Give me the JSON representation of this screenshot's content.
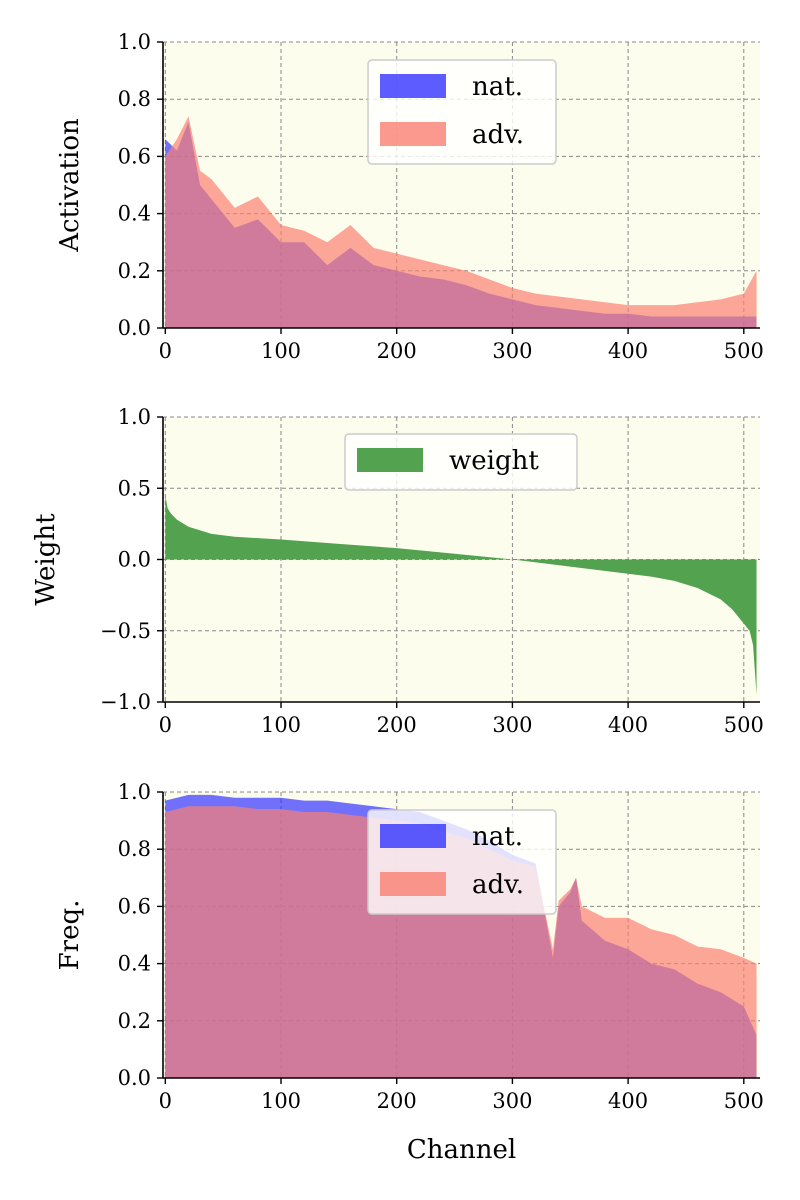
{
  "chart_data": [
    {
      "type": "area",
      "xlabel": "",
      "ylabel": "Activation",
      "xlim": [
        -2,
        514
      ],
      "ylim": [
        0,
        1.0
      ],
      "xticks": [
        "0",
        "100",
        "200",
        "300",
        "400",
        "500"
      ],
      "yticks": [
        "0.0",
        "0.2",
        "0.4",
        "0.6",
        "0.8",
        "1.0"
      ],
      "grid": true,
      "legend": "upper center",
      "series": [
        {
          "name": "nat.",
          "color": "#3333ff",
          "x": [
            0,
            10,
            20,
            30,
            40,
            60,
            80,
            100,
            120,
            140,
            160,
            180,
            200,
            220,
            240,
            260,
            280,
            300,
            320,
            340,
            360,
            380,
            400,
            420,
            440,
            460,
            480,
            500,
            511
          ],
          "values": [
            0.66,
            0.62,
            0.72,
            0.5,
            0.45,
            0.35,
            0.38,
            0.3,
            0.3,
            0.22,
            0.28,
            0.22,
            0.2,
            0.18,
            0.17,
            0.15,
            0.12,
            0.1,
            0.08,
            0.07,
            0.06,
            0.05,
            0.05,
            0.04,
            0.04,
            0.04,
            0.04,
            0.04,
            0.04
          ]
        },
        {
          "name": "adv.",
          "color": "#fa8072",
          "x": [
            0,
            10,
            20,
            30,
            40,
            60,
            80,
            100,
            120,
            140,
            160,
            180,
            200,
            220,
            240,
            260,
            280,
            300,
            320,
            340,
            360,
            380,
            400,
            420,
            440,
            460,
            480,
            500,
            511
          ],
          "values": [
            0.6,
            0.66,
            0.74,
            0.55,
            0.52,
            0.42,
            0.46,
            0.36,
            0.34,
            0.3,
            0.36,
            0.28,
            0.26,
            0.24,
            0.22,
            0.2,
            0.17,
            0.14,
            0.12,
            0.11,
            0.1,
            0.09,
            0.08,
            0.08,
            0.08,
            0.09,
            0.1,
            0.12,
            0.2
          ]
        }
      ]
    },
    {
      "type": "area",
      "xlabel": "",
      "ylabel": "Weight",
      "xlim": [
        -2,
        514
      ],
      "ylim": [
        -1.0,
        1.0
      ],
      "xticks": [
        "0",
        "100",
        "200",
        "300",
        "400",
        "500"
      ],
      "yticks": [
        "−1.0",
        "−0.5",
        "0.0",
        "0.5",
        "1.0"
      ],
      "grid": true,
      "legend": "upper center",
      "series": [
        {
          "name": "weight",
          "color": "#52a24f",
          "x": [
            0,
            2,
            5,
            10,
            20,
            40,
            60,
            80,
            100,
            150,
            200,
            250,
            300,
            310,
            350,
            400,
            420,
            440,
            460,
            480,
            490,
            500,
            505,
            508,
            511
          ],
          "values": [
            0.45,
            0.36,
            0.32,
            0.28,
            0.23,
            0.18,
            0.16,
            0.15,
            0.14,
            0.11,
            0.08,
            0.04,
            0.0,
            -0.01,
            -0.05,
            -0.1,
            -0.12,
            -0.15,
            -0.2,
            -0.28,
            -0.35,
            -0.45,
            -0.5,
            -0.6,
            -0.95
          ]
        }
      ]
    },
    {
      "type": "area",
      "xlabel": "Channel",
      "ylabel": "Freq.",
      "xlim": [
        -2,
        514
      ],
      "ylim": [
        0,
        1.0
      ],
      "xticks": [
        "0",
        "100",
        "200",
        "300",
        "400",
        "500"
      ],
      "yticks": [
        "0.0",
        "0.2",
        "0.4",
        "0.6",
        "0.8",
        "1.0"
      ],
      "grid": true,
      "legend": "upper center",
      "series": [
        {
          "name": "nat.",
          "color": "#3333ff",
          "x": [
            0,
            20,
            40,
            60,
            80,
            100,
            120,
            140,
            160,
            180,
            200,
            220,
            240,
            260,
            280,
            300,
            320,
            335,
            340,
            350,
            355,
            360,
            380,
            400,
            420,
            440,
            460,
            480,
            500,
            511
          ],
          "values": [
            0.97,
            0.99,
            0.99,
            0.98,
            0.98,
            0.98,
            0.97,
            0.97,
            0.96,
            0.95,
            0.94,
            0.93,
            0.9,
            0.87,
            0.83,
            0.78,
            0.75,
            0.42,
            0.6,
            0.65,
            0.7,
            0.55,
            0.48,
            0.45,
            0.4,
            0.38,
            0.33,
            0.3,
            0.25,
            0.15
          ]
        },
        {
          "name": "adv.",
          "color": "#fa8072",
          "x": [
            0,
            20,
            40,
            60,
            80,
            100,
            120,
            140,
            160,
            180,
            200,
            220,
            240,
            260,
            280,
            300,
            320,
            335,
            340,
            350,
            355,
            360,
            380,
            400,
            420,
            440,
            460,
            480,
            500,
            511
          ],
          "values": [
            0.93,
            0.95,
            0.95,
            0.95,
            0.94,
            0.94,
            0.93,
            0.93,
            0.92,
            0.91,
            0.9,
            0.89,
            0.86,
            0.84,
            0.8,
            0.76,
            0.74,
            0.45,
            0.62,
            0.66,
            0.7,
            0.6,
            0.56,
            0.56,
            0.52,
            0.5,
            0.46,
            0.45,
            0.42,
            0.4
          ]
        }
      ]
    }
  ],
  "colors": {
    "plot_background": "#fdfdee",
    "grid": "#888888",
    "overlap": "#9b4a8c"
  }
}
